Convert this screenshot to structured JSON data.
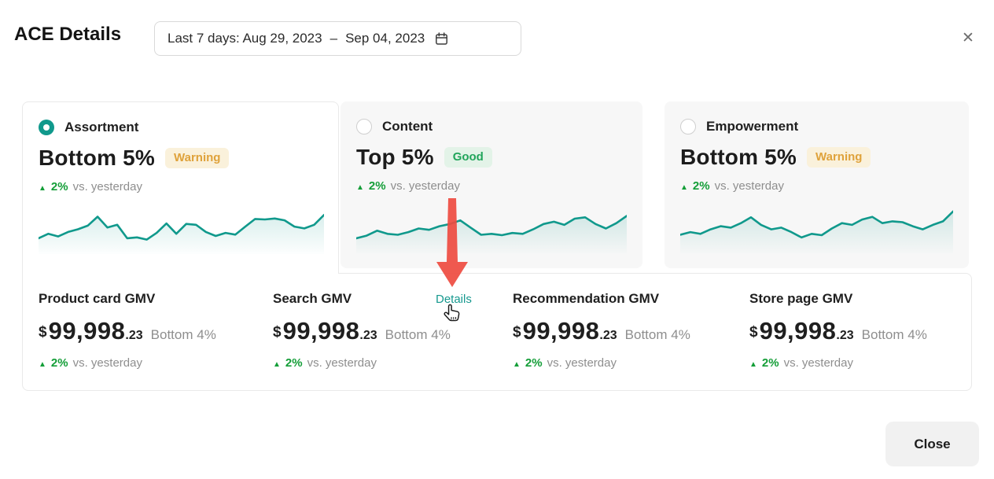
{
  "header": {
    "title": "ACE Details",
    "date_range": {
      "prefix": "Last 7 days: Aug 29, 2023",
      "separator": "–",
      "end": "Sep 04, 2023"
    },
    "close_icon": "✕"
  },
  "colors": {
    "teal": "#10998C",
    "link_teal": "#17998F",
    "warning_text": "#DFA23B",
    "warning_bg": "#FAF1DB",
    "good_text": "#21A55B",
    "good_bg": "#E3F3E8",
    "delta_green": "#149E38",
    "muted_gray": "#8E8E8E",
    "card_gray": "#F7F7F7",
    "border_gray": "#E9E9E9",
    "arrow_red": "#EE4B40"
  },
  "tabs": [
    {
      "label": "Assortment",
      "selected": true,
      "status": "Bottom 5%",
      "badge": "Warning",
      "delta_icon": "▲",
      "delta": "2%",
      "delta_suffix": "vs. yesterday",
      "sparkline": [
        30,
        40,
        34,
        44,
        50,
        58,
        78,
        54,
        60,
        30,
        32,
        27,
        42,
        63,
        40,
        62,
        60,
        44,
        35,
        42,
        38,
        56,
        73,
        72,
        74,
        70,
        56,
        52,
        60,
        82
      ]
    },
    {
      "label": "Content",
      "selected": false,
      "status": "Top 5%",
      "badge": "Good",
      "delta_icon": "▲",
      "delta": "2%",
      "delta_suffix": "vs. yesterday",
      "sparkline": [
        28,
        34,
        45,
        38,
        36,
        42,
        50,
        47,
        55,
        60,
        68,
        52,
        36,
        38,
        35,
        40,
        38,
        48,
        60,
        65,
        58,
        72,
        75,
        60,
        50,
        62,
        78
      ]
    },
    {
      "label": "Empowerment",
      "selected": false,
      "status": "Bottom 5%",
      "badge": "Warning",
      "delta_icon": "▲",
      "delta": "2%",
      "delta_suffix": "vs. yesterday",
      "sparkline": [
        36,
        42,
        38,
        48,
        55,
        52,
        62,
        75,
        58,
        48,
        52,
        42,
        30,
        38,
        35,
        50,
        62,
        58,
        70,
        76,
        62,
        66,
        64,
        55,
        48,
        58,
        66,
        88
      ]
    }
  ],
  "metrics": [
    {
      "title": "Product card GMV",
      "currency": "$",
      "value_int": "99,998",
      "value_dec": ".23",
      "rank": "Bottom 4%",
      "delta_icon": "▲",
      "delta": "2%",
      "delta_suffix": "vs. yesterday"
    },
    {
      "title": "Search GMV",
      "link": "Details",
      "currency": "$",
      "value_int": "99,998",
      "value_dec": ".23",
      "rank": "Bottom 4%",
      "delta_icon": "▲",
      "delta": "2%",
      "delta_suffix": "vs. yesterday"
    },
    {
      "title": "Recommendation GMV",
      "currency": "$",
      "value_int": "99,998",
      "value_dec": ".23",
      "rank": "Bottom 4%",
      "delta_icon": "▲",
      "delta": "2%",
      "delta_suffix": "vs. yesterday"
    },
    {
      "title": "Store page GMV",
      "currency": "$",
      "value_int": "99,998",
      "value_dec": ".23",
      "rank": "Bottom 4%",
      "delta_icon": "▲",
      "delta": "2%",
      "delta_suffix": "vs. yesterday"
    }
  ],
  "footer": {
    "close_label": "Close"
  }
}
